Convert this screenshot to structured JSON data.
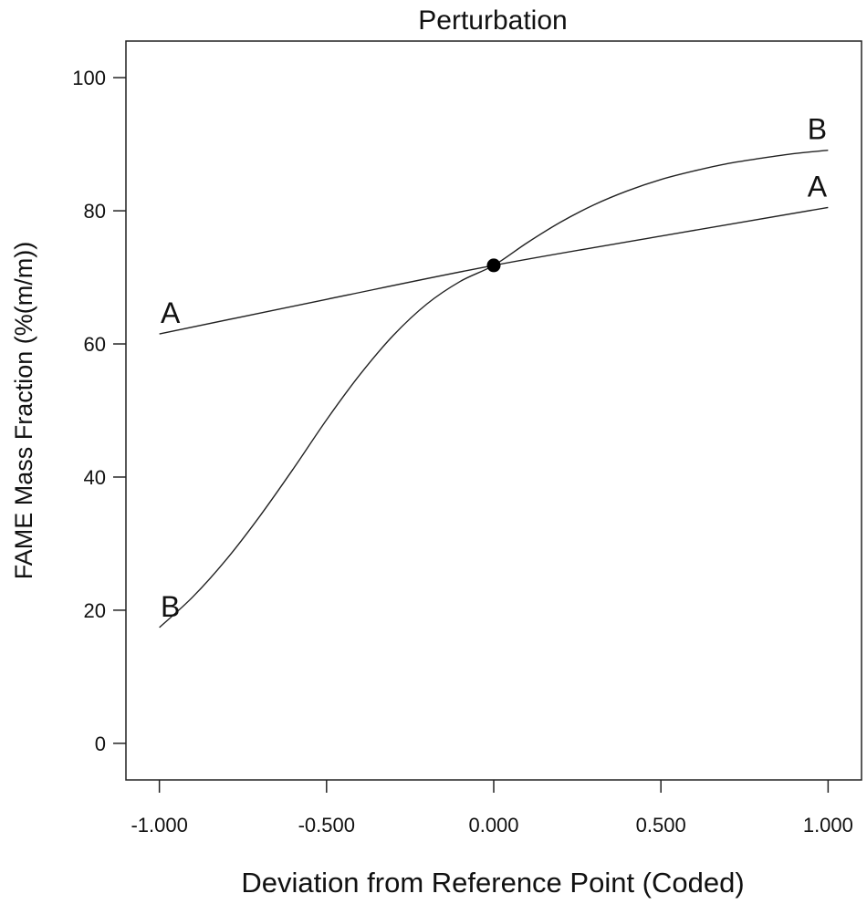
{
  "chart_data": {
    "type": "line",
    "title": "Perturbation",
    "xlabel": "Deviation from Reference Point (Coded)",
    "ylabel": "FAME Mass Fraction (%(m/m))",
    "xlim": [
      -1.1,
      1.1
    ],
    "ylim": [
      -5.5,
      105.5
    ],
    "xticks": [
      -1.0,
      -0.5,
      0.0,
      0.5,
      1.0
    ],
    "xtick_labels": [
      "-1.000",
      "-0.500",
      "0.000",
      "0.500",
      "1.000"
    ],
    "yticks": [
      0,
      20,
      40,
      60,
      80,
      100
    ],
    "ytick_labels": [
      "0",
      "20",
      "40",
      "60",
      "80",
      "100"
    ],
    "grid": false,
    "series": [
      {
        "name": "A",
        "x": [
          -1.0,
          -0.5,
          0.0,
          0.5,
          1.0
        ],
        "values": [
          61.5,
          66.7,
          71.8,
          76.2,
          80.5
        ]
      },
      {
        "name": "B",
        "x": [
          -1.0,
          -0.9,
          -0.8,
          -0.7,
          -0.6,
          -0.5,
          -0.4,
          -0.3,
          -0.2,
          -0.1,
          0.0,
          0.1,
          0.2,
          0.3,
          0.4,
          0.5,
          0.6,
          0.7,
          0.8,
          0.9,
          1.0
        ],
        "values": [
          17.4,
          22.0,
          27.6,
          34.1,
          41.2,
          48.6,
          55.4,
          61.3,
          66.0,
          69.4,
          71.8,
          75.2,
          78.3,
          80.9,
          83.0,
          84.7,
          86.0,
          87.1,
          87.9,
          88.6,
          89.1
        ]
      }
    ],
    "reference_point": {
      "x": 0.0,
      "y": 71.8
    }
  }
}
